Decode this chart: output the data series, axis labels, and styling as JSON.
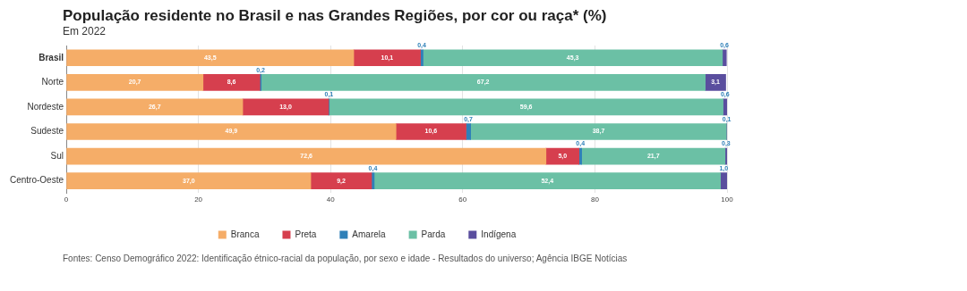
{
  "chart_data": {
    "type": "bar",
    "orientation": "horizontal",
    "stacked": true,
    "title": "População residente no Brasil e nas Grandes Regiões, por cor ou raça* (%)",
    "subtitle": "Em 2022",
    "categories": [
      "Brasil",
      "Norte",
      "Nordeste",
      "Sudeste",
      "Sul",
      "Centro-Oeste"
    ],
    "series": [
      {
        "name": "Branca",
        "color": "#f5ad68",
        "values": [
          43.5,
          20.7,
          26.7,
          49.9,
          72.6,
          37.0
        ],
        "value_labels": [
          "43,5",
          "20,7",
          "26,7",
          "49,9",
          "72,6",
          "37,0"
        ]
      },
      {
        "name": "Preta",
        "color": "#d63f4e",
        "values": [
          10.1,
          8.6,
          13.0,
          10.6,
          5.0,
          9.2
        ],
        "value_labels": [
          "10,1",
          "8,6",
          "13,0",
          "10,6",
          "5,0",
          "9,2"
        ]
      },
      {
        "name": "Amarela",
        "color": "#2f80b8",
        "values": [
          0.4,
          0.2,
          0.1,
          0.7,
          0.4,
          0.4
        ],
        "value_labels": [
          "0,4",
          "0,2",
          "0,1",
          "0,7",
          "0,4",
          "0,4"
        ]
      },
      {
        "name": "Parda",
        "color": "#6bc0a5",
        "values": [
          45.3,
          67.2,
          59.6,
          38.7,
          21.7,
          52.4
        ],
        "value_labels": [
          "45,3",
          "67,2",
          "59,6",
          "38,7",
          "21,7",
          "52,4"
        ]
      },
      {
        "name": "Indígena",
        "color": "#5a4e9e",
        "values": [
          0.6,
          3.1,
          0.6,
          0.1,
          0.3,
          1.0
        ],
        "value_labels": [
          "0,6",
          "3,1",
          "0,6",
          "0,1",
          "0,3",
          "1,0"
        ]
      }
    ],
    "xlim": [
      0,
      100
    ],
    "xticks": [
      0,
      20,
      40,
      60,
      80,
      100
    ],
    "grid": "x",
    "legend": "bottom",
    "annotations": [
      "Fontes: Censo Demográfico 2022: Identificação étnico-racial da população, por sexo e idade - Resultados do universo; Agência IBGE Notícias"
    ]
  }
}
